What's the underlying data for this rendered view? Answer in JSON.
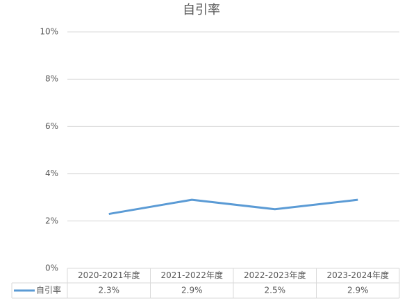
{
  "chart_data": {
    "type": "line",
    "title": "自引率",
    "categories": [
      "2020-2021年度",
      "2021-2022年度",
      "2022-2023年度",
      "2023-2024年度"
    ],
    "series": [
      {
        "name": "自引率",
        "color": "#5b9bd5",
        "values": [
          2.3,
          2.9,
          2.5,
          2.9
        ],
        "value_labels": [
          "2.3%",
          "2.9%",
          "2.5%",
          "2.9%"
        ]
      }
    ],
    "ylim": [
      0,
      10
    ],
    "yticks": [
      {
        "value": 0,
        "label": "0%"
      },
      {
        "value": 2,
        "label": "2%"
      },
      {
        "value": 4,
        "label": "4%"
      },
      {
        "value": 6,
        "label": "6%"
      },
      {
        "value": 8,
        "label": "8%"
      },
      {
        "value": 10,
        "label": "10%"
      }
    ],
    "grid": true
  }
}
